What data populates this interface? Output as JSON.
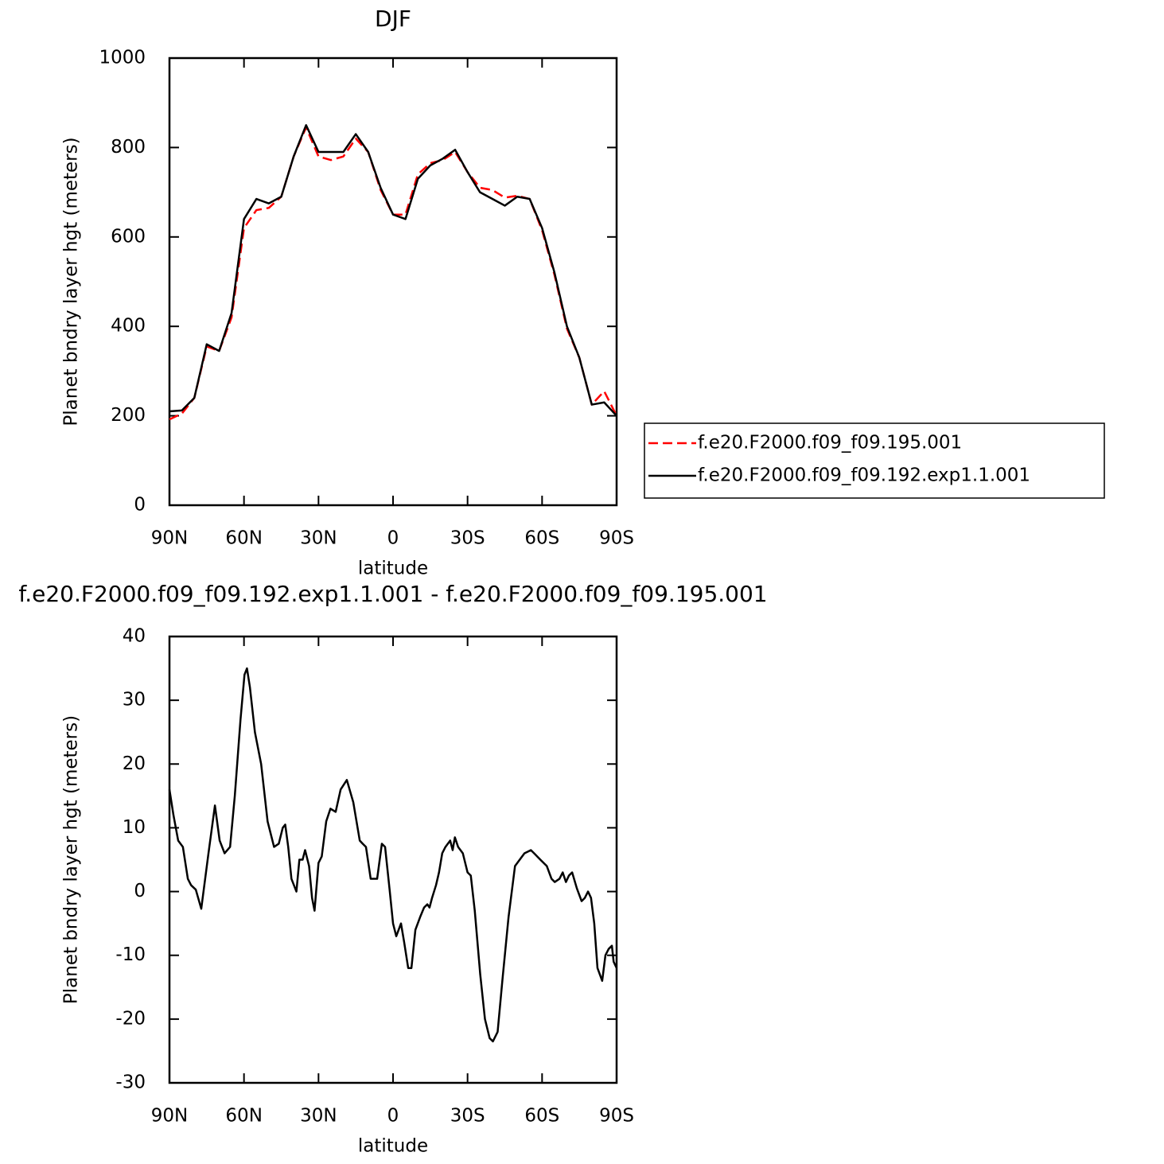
{
  "chart_data": [
    {
      "type": "line",
      "title": "DJF",
      "x_label": "latitude",
      "y_label": "Planet bndry layer hgt (meters)",
      "x": [
        90,
        85,
        80,
        75,
        70,
        65,
        60,
        55,
        50,
        45,
        40,
        35,
        30,
        25,
        20,
        15,
        10,
        5,
        0,
        -5,
        -10,
        -15,
        -20,
        -25,
        -30,
        -35,
        -40,
        -45,
        -50,
        -55,
        -60,
        -65,
        -70,
        -75,
        -80,
        -85,
        -90
      ],
      "series": [
        {
          "name": "f.e20.F2000.f09_f09.195.001",
          "color": "#ff0000",
          "line_style": "dashed",
          "values": [
            192,
            205,
            240,
            355,
            345,
            420,
            620,
            660,
            665,
            690,
            780,
            845,
            780,
            772,
            780,
            820,
            790,
            705,
            650,
            650,
            740,
            765,
            772,
            790,
            745,
            710,
            705,
            688,
            692,
            685,
            615,
            515,
            395,
            330,
            225,
            255,
            200
          ]
        },
        {
          "name": "f.e20.F2000.f09_f09.192.exp1.1.001",
          "color": "#000000",
          "line_style": "solid",
          "values": [
            210,
            212,
            240,
            360,
            345,
            430,
            640,
            685,
            675,
            690,
            780,
            850,
            790,
            790,
            790,
            830,
            790,
            710,
            650,
            640,
            730,
            760,
            775,
            795,
            745,
            700,
            685,
            670,
            690,
            685,
            620,
            520,
            400,
            330,
            225,
            230,
            200
          ]
        }
      ],
      "xlim": [
        90,
        -90
      ],
      "xticks": [
        {
          "value": 90,
          "label": "90N"
        },
        {
          "value": 60,
          "label": "60N"
        },
        {
          "value": 30,
          "label": "30N"
        },
        0,
        {
          "value": -30,
          "label": "30S"
        },
        {
          "value": -60,
          "label": "60S"
        },
        {
          "value": -90,
          "label": "90S"
        }
      ],
      "ylim": [
        0,
        1000
      ],
      "yticks": [
        0,
        200,
        400,
        600,
        800,
        1000
      ],
      "legend": "outside-right"
    },
    {
      "type": "line",
      "title": "f.e20.F2000.f09_f09.192.exp1.1.001 - f.e20.F2000.f09_f09.195.001",
      "x_label": "latitude",
      "y_label": "Planet bndry layer hgt (meters)",
      "x": [
        90.0,
        88.4,
        86.5,
        84.6,
        82.6,
        81.3,
        79.4,
        77.2,
        74.3,
        71.7,
        69.8,
        67.8,
        65.6,
        63.7,
        61.4,
        59.8,
        58.8,
        57.6,
        55.6,
        53.1,
        50.5,
        47.9,
        46.0,
        44.4,
        43.4,
        42.2,
        40.9,
        38.9,
        37.7,
        36.4,
        35.4,
        33.8,
        32.6,
        31.6,
        30.0,
        28.7,
        26.9,
        25.2,
        23.1,
        21.1,
        18.6,
        16.0,
        13.4,
        12.2,
        10.9,
        9.0,
        6.4,
        4.5,
        3.2,
        1.3,
        0.0,
        -1.3,
        -3.2,
        -4.5,
        -6.1,
        -7.4,
        -9.0,
        -10.9,
        -12.5,
        -13.8,
        -14.7,
        -15.7,
        -17.3,
        -18.5,
        -19.8,
        -21.1,
        -23.0,
        -24.0,
        -24.9,
        -26.2,
        -28.1,
        -30.0,
        -31.3,
        -32.9,
        -35.1,
        -37.0,
        -38.9,
        -40.2,
        -42.1,
        -44.0,
        -46.5,
        -49.1,
        -51.0,
        -52.9,
        -55.5,
        -56.8,
        -59.3,
        -61.9,
        -63.8,
        -65.1,
        -67.0,
        -68.3,
        -69.6,
        -70.8,
        -72.1,
        -74.0,
        -75.9,
        -77.2,
        -78.5,
        -79.7,
        -81.0,
        -82.3,
        -84.2,
        -85.5,
        -86.8,
        -88.1,
        -88.8,
        -90.0
      ],
      "series": [
        {
          "color": "#000000",
          "line_style": "solid",
          "values": [
            16,
            12,
            8,
            7,
            2,
            1,
            0.3,
            -2.7,
            6,
            13.5,
            8,
            6,
            7,
            15,
            27,
            34,
            35,
            32,
            25,
            20,
            11,
            7,
            7.5,
            10,
            10.5,
            7,
            2,
            0,
            5,
            5,
            6.5,
            4,
            -1,
            -3,
            4.5,
            5.5,
            11,
            13,
            12.5,
            16,
            17.5,
            14,
            8,
            7.5,
            7,
            2,
            2,
            7.5,
            7,
            0,
            -5,
            -7,
            -5,
            -8,
            -12,
            -12,
            -6,
            -4,
            -2.5,
            -2,
            -2.5,
            -1,
            1,
            3,
            6,
            7,
            8,
            6.5,
            8.5,
            7,
            6,
            3,
            2.5,
            -3,
            -13,
            -20,
            -23,
            -23.5,
            -22,
            -14,
            -4,
            4,
            5,
            6,
            6.5,
            6,
            5,
            4,
            2,
            1.5,
            2,
            3,
            1.5,
            2.5,
            3,
            0.5,
            -1.5,
            -1,
            0,
            -1,
            -5,
            -12,
            -14,
            -10,
            -9,
            -8.5,
            -11,
            -12
          ]
        }
      ],
      "xlim": [
        90,
        -90
      ],
      "xticks": [
        {
          "value": 90,
          "label": "90N"
        },
        {
          "value": 60,
          "label": "60N"
        },
        {
          "value": 30,
          "label": "30N"
        },
        0,
        {
          "value": -30,
          "label": "30S"
        },
        {
          "value": -60,
          "label": "60S"
        },
        {
          "value": -90,
          "label": "90S"
        }
      ],
      "ylim": [
        -30,
        40
      ],
      "yticks": [
        -30,
        -20,
        -10,
        0,
        10,
        20,
        30,
        40
      ]
    }
  ]
}
